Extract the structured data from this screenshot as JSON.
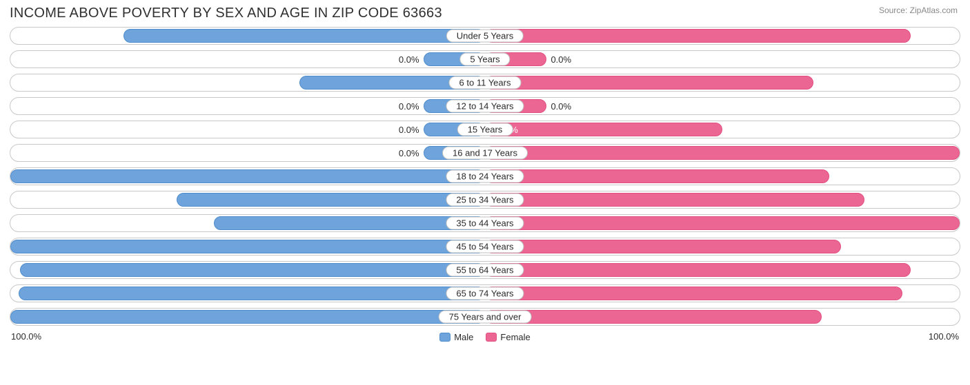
{
  "title": "INCOME ABOVE POVERTY BY SEX AND AGE IN ZIP CODE 63663",
  "source": "Source: ZipAtlas.com",
  "colors": {
    "male_fill": "#6ea4db",
    "male_border": "#4f8ccc",
    "female_fill": "#ec6693",
    "female_border": "#e14e81",
    "text": "#2a2a2a",
    "row_border": "#c8c8c8",
    "bg": "#ffffff"
  },
  "min_bar_pct": 13,
  "label_inside_threshold": 35,
  "axis": {
    "left": "100.0%",
    "right": "100.0%"
  },
  "legend": {
    "male": "Male",
    "female": "Female"
  },
  "rows": [
    {
      "category": "Under 5 Years",
      "male": 76.1,
      "female": 89.7,
      "male_label": "76.1%",
      "female_label": "89.7%"
    },
    {
      "category": "5 Years",
      "male": 0.0,
      "female": 0.0,
      "male_label": "0.0%",
      "female_label": "0.0%"
    },
    {
      "category": "6 to 11 Years",
      "male": 39.1,
      "female": 69.2,
      "male_label": "39.1%",
      "female_label": "69.2%"
    },
    {
      "category": "12 to 14 Years",
      "male": 0.0,
      "female": 0.0,
      "male_label": "0.0%",
      "female_label": "0.0%"
    },
    {
      "category": "15 Years",
      "male": 0.0,
      "female": 50.0,
      "male_label": "0.0%",
      "female_label": "50.0%"
    },
    {
      "category": "16 and 17 Years",
      "male": 0.0,
      "female": 100.0,
      "male_label": "0.0%",
      "female_label": "100.0%"
    },
    {
      "category": "18 to 24 Years",
      "male": 100.0,
      "female": 72.6,
      "male_label": "100.0%",
      "female_label": "72.6%"
    },
    {
      "category": "25 to 34 Years",
      "male": 65.0,
      "female": 80.0,
      "male_label": "65.0%",
      "female_label": "80.0%"
    },
    {
      "category": "35 to 44 Years",
      "male": 57.1,
      "female": 100.0,
      "male_label": "57.1%",
      "female_label": "100.0%"
    },
    {
      "category": "45 to 54 Years",
      "male": 100.0,
      "female": 75.0,
      "male_label": "100.0%",
      "female_label": "75.0%"
    },
    {
      "category": "55 to 64 Years",
      "male": 97.9,
      "female": 89.7,
      "male_label": "97.9%",
      "female_label": "89.7%"
    },
    {
      "category": "65 to 74 Years",
      "male": 98.2,
      "female": 87.9,
      "male_label": "98.2%",
      "female_label": "87.9%"
    },
    {
      "category": "75 Years and over",
      "male": 100.0,
      "female": 71.0,
      "male_label": "100.0%",
      "female_label": "71.0%"
    }
  ]
}
